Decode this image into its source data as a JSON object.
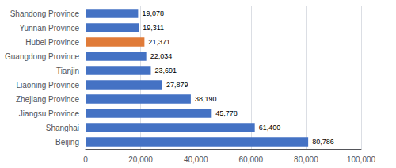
{
  "chart_data": {
    "type": "bar",
    "orientation": "horizontal",
    "categories": [
      "Beijing",
      "Shanghai",
      "Jiangsu Province",
      "Zhejiang Province",
      "Liaoning Province",
      "Tianjin",
      "Guangdong Province",
      "Hubei Province",
      "Yunnan Province",
      "Shandong Province"
    ],
    "values": [
      80786,
      61400,
      45778,
      38190,
      27879,
      23691,
      22034,
      21371,
      19311,
      19078
    ],
    "value_labels": [
      "80,786",
      "61,400",
      "45,778",
      "38,190",
      "27,879",
      "23,691",
      "22,034",
      "21,371",
      "19,311",
      "19,078"
    ],
    "colors": [
      "#4472C4",
      "#4472C4",
      "#4472C4",
      "#4472C4",
      "#4472C4",
      "#4472C4",
      "#4472C4",
      "#E07B39",
      "#4472C4",
      "#4472C4"
    ],
    "data_labels": true,
    "xlim": [
      0,
      100000
    ],
    "xticks": [
      0,
      {
        "value": 20000,
        "label": "20,000"
      },
      {
        "value": 40000,
        "label": "40,000"
      },
      {
        "value": 60000,
        "label": "60,000"
      },
      {
        "value": 80000,
        "label": "80,000"
      },
      {
        "value": 100000,
        "label": "100,000"
      }
    ],
    "grid": true
  }
}
